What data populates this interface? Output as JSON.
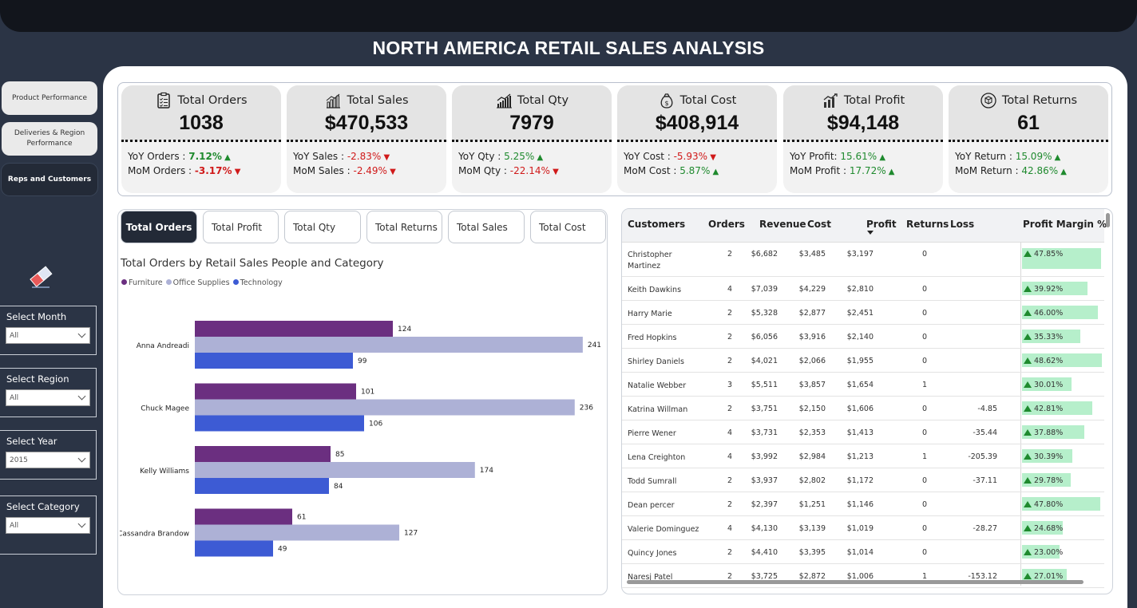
{
  "title": "NORTH AMERICA RETAIL SALES ANALYSIS",
  "nav": {
    "product": "Product Performance",
    "deliveries": "Deliveries & Region Performance",
    "reps": "Reps and Customers"
  },
  "slicers": [
    {
      "label": "Select Month",
      "value": "All"
    },
    {
      "label": "Select Region",
      "value": "All"
    },
    {
      "label": "Select Year",
      "value": "2015"
    },
    {
      "label": "Select Category",
      "value": "All"
    }
  ],
  "kpis": [
    {
      "title": "Total Orders",
      "value": "1038",
      "icon": "clipboard-icon",
      "yoy_label": "YoY Orders : ",
      "yoy": "7.12%",
      "yoy_dir": "up",
      "mom_label": "MoM Orders : ",
      "mom": "-3.17%",
      "mom_dir": "down"
    },
    {
      "title": "Total Sales",
      "value": "$470,533",
      "icon": "bar-chart-icon",
      "yoy_label": "YoY Sales : ",
      "yoy": "-2.83%",
      "yoy_dir": "down",
      "mom_label": "MoM Sales : ",
      "mom": "-2.49%",
      "mom_dir": "down"
    },
    {
      "title": "Total Qty",
      "value": "7979",
      "icon": "growth-chart-icon",
      "yoy_label": "YoY Qty : ",
      "yoy": "5.25%",
      "yoy_dir": "up",
      "mom_label": "MoM Qty : ",
      "mom": "-22.14%",
      "mom_dir": "down"
    },
    {
      "title": "Total Cost",
      "value": "$408,914",
      "icon": "money-bag-icon",
      "yoy_label": "YoY Cost : ",
      "yoy": "-5.93%",
      "yoy_dir": "down",
      "mom_label": "MoM Cost : ",
      "mom": "5.87%",
      "mom_dir": "up"
    },
    {
      "title": "Total Profit",
      "value": "$94,148",
      "icon": "profit-chart-icon",
      "yoy_label": "YoY Profit: ",
      "yoy": "15.61%",
      "yoy_dir": "up",
      "mom_label": "MoM Profit : ",
      "mom": "17.72%",
      "mom_dir": "up"
    },
    {
      "title": "Total Returns",
      "value": "61",
      "icon": "return-box-icon",
      "yoy_label": "YoY Return : ",
      "yoy": "15.09%",
      "yoy_dir": "up",
      "mom_label": "MoM Return : ",
      "mom": "42.86%",
      "mom_dir": "up"
    }
  ],
  "tabs": [
    "Total Orders",
    "Total Profit",
    "Total Qty",
    "Total Returns",
    "Total Sales",
    "Total Cost"
  ],
  "colors": {
    "furniture": "#6b2f80",
    "office_supplies": "#adb1d6",
    "technology": "#3d5bd4",
    "accent_dark": "#232a37",
    "pm_bar": "#b6efcb",
    "up": "#1f8a2e",
    "down": "#d01a1a"
  },
  "chart_data": {
    "type": "bar",
    "orientation": "horizontal",
    "title": "Total Orders by Retail Sales People and Category",
    "categories": [
      "Anna Andreadi",
      "Chuck Magee",
      "Kelly Williams",
      "Cassandra Brandow"
    ],
    "series": [
      {
        "name": "Furniture",
        "values": [
          124,
          101,
          85,
          61
        ]
      },
      {
        "name": "Office Supplies",
        "values": [
          241,
          236,
          174,
          127
        ]
      },
      {
        "name": "Technology",
        "values": [
          99,
          106,
          84,
          49
        ]
      }
    ],
    "legend_position": "top-left",
    "grid": false
  },
  "table": {
    "headers": [
      "Customers",
      "Orders",
      "Revenue",
      "Cost",
      "Profit",
      "Returns",
      "Loss",
      "Profit Margin %"
    ],
    "rows": [
      {
        "customer": "Christopher Martinez",
        "orders": "2",
        "revenue": "$6,682",
        "cost": "$3,485",
        "profit": "$3,197",
        "returns": "0",
        "loss": "",
        "pm": "47.85%",
        "pm_value": 47.85
      },
      {
        "customer": "Keith Dawkins",
        "orders": "4",
        "revenue": "$7,039",
        "cost": "$4,229",
        "profit": "$2,810",
        "returns": "0",
        "loss": "",
        "pm": "39.92%",
        "pm_value": 39.92
      },
      {
        "customer": "Harry Marie",
        "orders": "2",
        "revenue": "$5,328",
        "cost": "$2,877",
        "profit": "$2,451",
        "returns": "0",
        "loss": "",
        "pm": "46.00%",
        "pm_value": 46.0
      },
      {
        "customer": "Fred Hopkins",
        "orders": "2",
        "revenue": "$6,056",
        "cost": "$3,916",
        "profit": "$2,140",
        "returns": "0",
        "loss": "",
        "pm": "35.33%",
        "pm_value": 35.33
      },
      {
        "customer": "Shirley Daniels",
        "orders": "2",
        "revenue": "$4,021",
        "cost": "$2,066",
        "profit": "$1,955",
        "returns": "0",
        "loss": "",
        "pm": "48.62%",
        "pm_value": 48.62
      },
      {
        "customer": "Natalie Webber",
        "orders": "3",
        "revenue": "$5,511",
        "cost": "$3,857",
        "profit": "$1,654",
        "returns": "1",
        "loss": "",
        "pm": "30.01%",
        "pm_value": 30.01
      },
      {
        "customer": "Katrina Willman",
        "orders": "2",
        "revenue": "$3,751",
        "cost": "$2,150",
        "profit": "$1,606",
        "returns": "0",
        "loss": "-4.85",
        "pm": "42.81%",
        "pm_value": 42.81
      },
      {
        "customer": "Pierre Wener",
        "orders": "4",
        "revenue": "$3,731",
        "cost": "$2,353",
        "profit": "$1,413",
        "returns": "0",
        "loss": "-35.44",
        "pm": "37.88%",
        "pm_value": 37.88
      },
      {
        "customer": "Lena Creighton",
        "orders": "4",
        "revenue": "$3,992",
        "cost": "$2,984",
        "profit": "$1,213",
        "returns": "1",
        "loss": "-205.39",
        "pm": "30.39%",
        "pm_value": 30.39
      },
      {
        "customer": "Todd Sumrall",
        "orders": "2",
        "revenue": "$3,937",
        "cost": "$2,802",
        "profit": "$1,172",
        "returns": "0",
        "loss": "-37.11",
        "pm": "29.78%",
        "pm_value": 29.78
      },
      {
        "customer": "Dean percer",
        "orders": "2",
        "revenue": "$2,397",
        "cost": "$1,251",
        "profit": "$1,146",
        "returns": "0",
        "loss": "",
        "pm": "47.80%",
        "pm_value": 47.8
      },
      {
        "customer": "Valerie Dominguez",
        "orders": "4",
        "revenue": "$4,130",
        "cost": "$3,139",
        "profit": "$1,019",
        "returns": "0",
        "loss": "-28.27",
        "pm": "24.68%",
        "pm_value": 24.68
      },
      {
        "customer": "Quincy Jones",
        "orders": "2",
        "revenue": "$4,410",
        "cost": "$3,395",
        "profit": "$1,014",
        "returns": "0",
        "loss": "",
        "pm": "23.00%",
        "pm_value": 23.0
      },
      {
        "customer": "Naresj Patel",
        "orders": "2",
        "revenue": "$3,725",
        "cost": "$2,872",
        "profit": "$1,006",
        "returns": "1",
        "loss": "-153.12",
        "pm": "27.01%",
        "pm_value": 27.01
      }
    ]
  }
}
